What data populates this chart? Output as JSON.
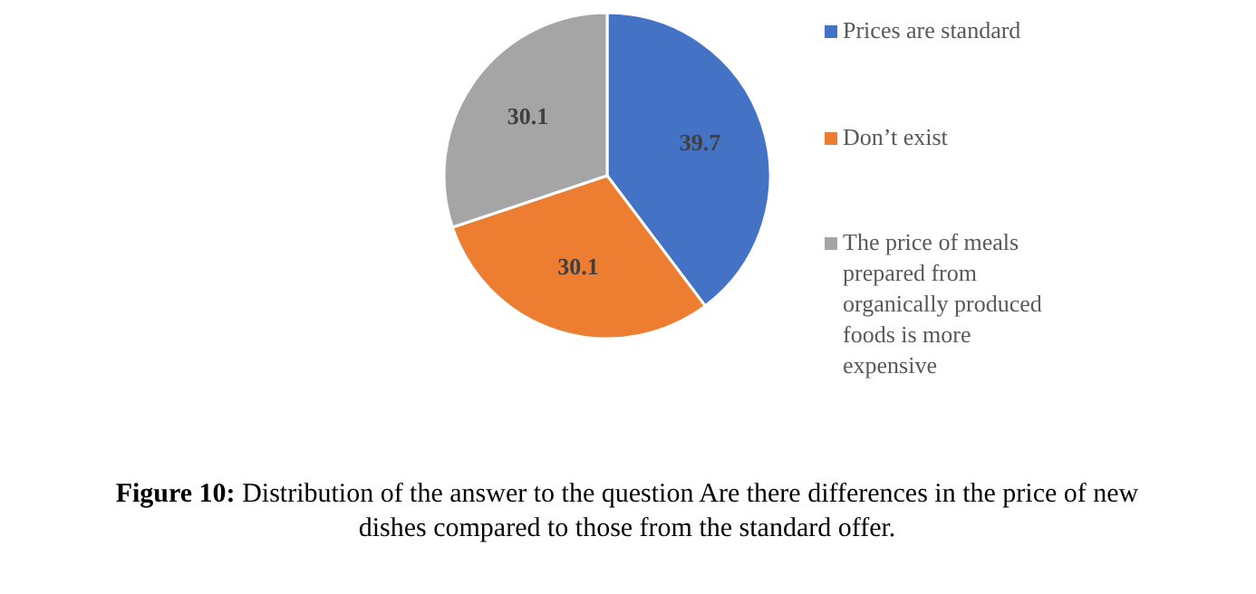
{
  "chart_data": {
    "type": "pie",
    "categories": [
      "Prices are standard",
      "Don’t exist",
      "The price of meals prepared from organically produced foods is more expensive"
    ],
    "values": [
      39.7,
      30.1,
      30.1
    ],
    "colors": [
      "#4472c4",
      "#ed7d31",
      "#a5a5a5"
    ],
    "data_labels": true,
    "legend": "right",
    "annotations": [
      "Figure 10: Distribution of the answer to the question Are there differences in the price of new dishes compared to those from the standard offer."
    ]
  }
}
